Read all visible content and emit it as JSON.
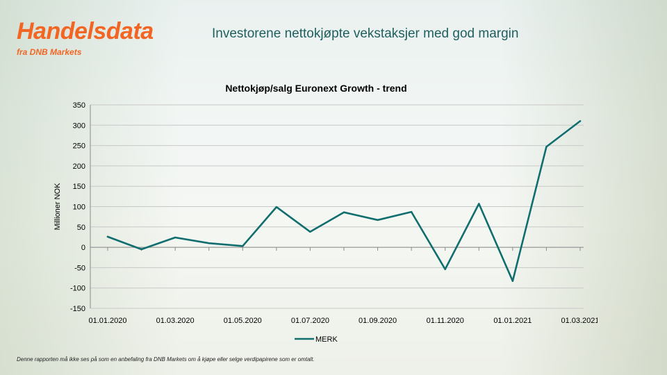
{
  "brand": {
    "title": "Handelsdata",
    "subtitle": "fra DNB Markets"
  },
  "headline": "Investorene nettokjøpte vekstaksjer med god margin",
  "footer": "Denne rapporten må ikke ses på som en anbefaling fra DNB Markets om å kjøpe eller selge verdipapirene som er omtalt.",
  "colors": {
    "brand": "#f26522",
    "series": "#106e6e",
    "headline": "#1f5f5f"
  },
  "chart_data": {
    "type": "line",
    "title": "Nettokjøp/salg Euronext Growth - trend",
    "ylabel": "Millioner NOK",
    "xlabel": "",
    "ylim": [
      -150,
      350
    ],
    "yticks": [
      350,
      300,
      250,
      200,
      150,
      100,
      50,
      0,
      -50,
      -100,
      -150
    ],
    "x": [
      "01.01.2020",
      "01.02.2020",
      "01.03.2020",
      "01.04.2020",
      "01.05.2020",
      "01.06.2020",
      "01.07.2020",
      "01.08.2020",
      "01.09.2020",
      "01.10.2020",
      "01.11.2020",
      "01.12.2020",
      "01.01.2021",
      "01.02.2021",
      "01.03.2021"
    ],
    "xtick_labels": [
      "01.01.2020",
      "",
      "01.03.2020",
      "",
      "01.05.2020",
      "",
      "01.07.2020",
      "",
      "01.09.2020",
      "",
      "01.11.2020",
      "",
      "01.01.2021",
      "",
      "01.03.2021"
    ],
    "series": [
      {
        "name": "MERK",
        "values": [
          26,
          -5,
          24,
          10,
          3,
          99,
          38,
          86,
          67,
          87,
          -54,
          107,
          -83,
          247,
          310
        ]
      }
    ],
    "grid": true,
    "legend": "bottom"
  }
}
